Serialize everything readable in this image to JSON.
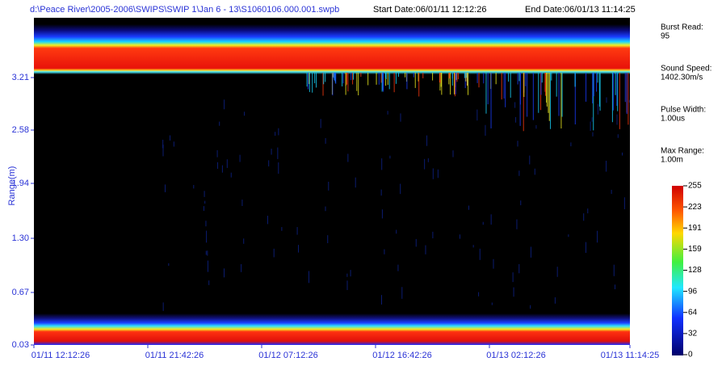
{
  "header": {
    "file_path": "d:\\Peace River\\2005-2006\\SWIPS\\SWIP 1\\Jan 6 - 13\\S1060106.000.001.swpb",
    "start_date": "Start Date:06/01/11 12:12:26",
    "end_date": "End Date:06/01/13 11:14:25"
  },
  "echogram": {
    "y_axis_label": "Range(m)",
    "y_tick_labels": [
      "3.21",
      "2.58",
      "1.94",
      "1.30",
      "0.67",
      "0.03"
    ],
    "x_tick_labels": [
      "01/11 12:12:26",
      "01/11 21:42:26",
      "01/12 07:12:26",
      "01/12 16:42:26",
      "01/13 02:12:26",
      "01/13 11:14:25"
    ]
  },
  "info_panel": [
    {
      "label": "Burst Read:",
      "value": "95"
    },
    {
      "label": "Sound Speed:",
      "value": "1402.30m/s"
    },
    {
      "label": "Pulse Width:",
      "value": "1.00us"
    },
    {
      "label": "Max Range:",
      "value": "1.00m"
    }
  ],
  "color_scale": {
    "tick_labels": [
      "255",
      "223",
      "191",
      "159",
      "128",
      "96",
      "64",
      "32",
      "0"
    ]
  }
}
